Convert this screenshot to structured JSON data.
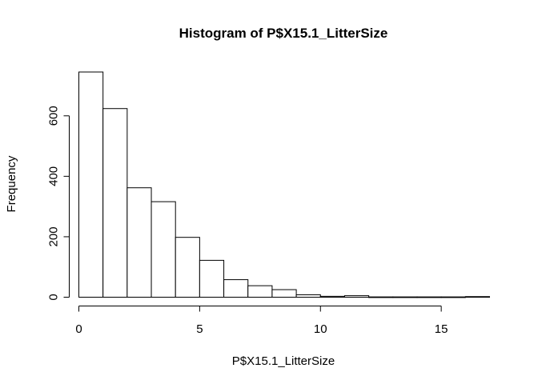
{
  "chart_data": {
    "type": "bar",
    "title": "Histogram of P$X15.1_LitterSize",
    "xlabel": "P$X15.1_LitterSize",
    "ylabel": "Frequency",
    "bins": [
      [
        0,
        1
      ],
      [
        1,
        2
      ],
      [
        2,
        3
      ],
      [
        3,
        4
      ],
      [
        4,
        5
      ],
      [
        5,
        6
      ],
      [
        6,
        7
      ],
      [
        7,
        8
      ],
      [
        8,
        9
      ],
      [
        9,
        10
      ],
      [
        10,
        11
      ],
      [
        11,
        12
      ],
      [
        12,
        13
      ],
      [
        13,
        14
      ],
      [
        14,
        15
      ],
      [
        15,
        16
      ],
      [
        16,
        17
      ]
    ],
    "values": [
      745,
      624,
      362,
      316,
      198,
      122,
      58,
      38,
      25,
      8,
      3,
      5,
      1,
      1,
      1,
      1,
      2
    ],
    "x_ticks": [
      0,
      5,
      10,
      15
    ],
    "x_tick_labels": [
      "0",
      "5",
      "10",
      "15"
    ],
    "y_ticks": [
      0,
      200,
      400,
      600
    ],
    "y_tick_labels": [
      "0",
      "200",
      "400",
      "600"
    ],
    "xlim": [
      0,
      17
    ],
    "ylim": [
      0,
      745
    ],
    "grid": false,
    "colors": {
      "bar_fill": "#ffffff",
      "bar_stroke": "#000000"
    }
  }
}
